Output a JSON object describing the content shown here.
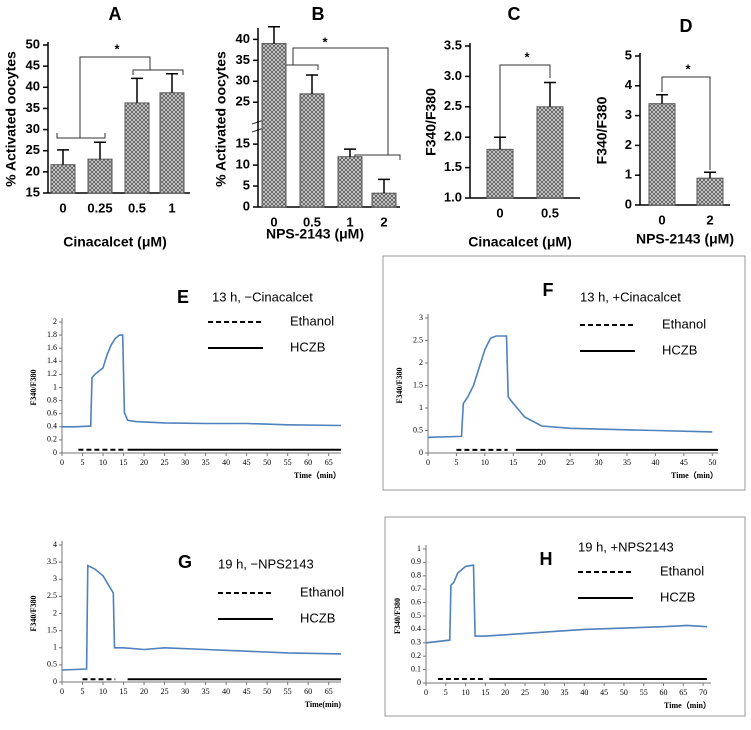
{
  "chart_data": [
    {
      "type": "bar",
      "title": "A",
      "categories": [
        "0",
        "0.25",
        "0.5",
        "1"
      ],
      "values": [
        21.7,
        23,
        36.3,
        38.7
      ],
      "errors": [
        3.5,
        4,
        5.8,
        4.5
      ],
      "color": "#555555",
      "ylim": [
        15,
        50
      ],
      "yticks": [
        15,
        20,
        25,
        30,
        35,
        40,
        45,
        50
      ],
      "xlabel": "Cinacalcet (μM)",
      "ylabel": "% Activated oocytes",
      "annotation": "*"
    },
    {
      "type": "bar",
      "title": "B",
      "categories": [
        "0",
        "0.5",
        "1",
        "2"
      ],
      "values": [
        39,
        27,
        12,
        3.3
      ],
      "errors": [
        4,
        4.5,
        1.8,
        3.3
      ],
      "color": "#555555",
      "ylim": [
        0,
        42
      ],
      "yticks": [
        0,
        5,
        10,
        15,
        25,
        30,
        35,
        40
      ],
      "xlabel": "NPS-2143 (μM)",
      "ylabel": "% Activated oocytes",
      "annotation": "*"
    },
    {
      "type": "bar",
      "title": "C",
      "categories": [
        "0",
        "0.5"
      ],
      "values": [
        1.8,
        2.5
      ],
      "errors": [
        0.2,
        0.4
      ],
      "color": "#555555",
      "ylim": [
        1,
        3.5
      ],
      "yticks": [
        {
          "value": 1,
          "label": "1.0"
        },
        1.5,
        {
          "value": 2,
          "label": "2.0"
        },
        2.5,
        {
          "value": 3,
          "label": "3.0"
        },
        3.5
      ],
      "xlabel": "Cinacalcet (μM)",
      "ylabel": "F340/F380",
      "annotation": "*"
    },
    {
      "type": "bar",
      "title": "D",
      "categories": [
        "0",
        "2"
      ],
      "values": [
        3.4,
        0.9
      ],
      "errors": [
        0.3,
        0.2
      ],
      "color": "#555555",
      "ylim": [
        0,
        5
      ],
      "yticks": [
        0,
        1,
        2,
        3,
        4,
        5
      ],
      "xlabel": "NPS-2143 (μM)",
      "ylabel": "F340/F380",
      "annotation": "*"
    },
    {
      "type": "line",
      "title": "E",
      "annotation": "13 h, −Cinacalcet",
      "color": "#4f81bd",
      "frame": false,
      "x": [
        0,
        3,
        7,
        7.3,
        8,
        9,
        10,
        11,
        12,
        13,
        14,
        14.8,
        15.2,
        16,
        18,
        25,
        35,
        45,
        55,
        68
      ],
      "values": [
        0.4,
        0.4,
        0.41,
        1.15,
        1.2,
        1.25,
        1.3,
        1.5,
        1.65,
        1.75,
        1.8,
        1.8,
        0.62,
        0.5,
        0.48,
        0.46,
        0.45,
        0.45,
        0.43,
        0.42
      ],
      "series": [
        {
          "name": "Ethanol",
          "color": "#000000",
          "dash": true,
          "x": [
            4,
            15
          ],
          "values": [
            0.05,
            0.05
          ]
        },
        {
          "name": "HCZB",
          "color": "#000000",
          "dash": false,
          "x": [
            16,
            68
          ],
          "values": [
            0.05,
            0.05
          ]
        }
      ],
      "xlim": [
        0,
        68
      ],
      "xticks": [
        0,
        5,
        10,
        15,
        20,
        25,
        30,
        35,
        40,
        45,
        50,
        55,
        60,
        65
      ],
      "ylim": [
        0,
        2
      ],
      "yticks": [
        0,
        0.2,
        0.4,
        0.6,
        0.8,
        1,
        1.2,
        1.4,
        1.6,
        1.8,
        2
      ],
      "xlabel": "Time（min）",
      "ylabel": "F340/F380"
    },
    {
      "type": "line",
      "title": "F",
      "annotation": "13 h, +Cinacalcet",
      "color": "#4f81bd",
      "frame": true,
      "x": [
        0,
        5.9,
        6.2,
        7,
        8,
        9,
        10,
        11,
        12,
        13,
        13.8,
        14.1,
        15,
        17,
        20,
        25,
        30,
        40,
        50
      ],
      "values": [
        0.35,
        0.37,
        1.1,
        1.25,
        1.5,
        1.9,
        2.3,
        2.55,
        2.6,
        2.6,
        2.6,
        1.25,
        1.1,
        0.8,
        0.6,
        0.55,
        0.53,
        0.5,
        0.47
      ],
      "series": [
        {
          "name": "Ethanol",
          "color": "#000000",
          "dash": true,
          "x": [
            5,
            14
          ],
          "values": [
            0.07,
            0.07
          ]
        },
        {
          "name": "HCZB",
          "color": "#000000",
          "dash": false,
          "x": [
            15.5,
            51
          ],
          "values": [
            0.07,
            0.07
          ]
        }
      ],
      "xlim": [
        0,
        51
      ],
      "xticks": [
        0,
        5,
        10,
        15,
        20,
        25,
        30,
        35,
        40,
        45,
        50
      ],
      "ylim": [
        0,
        3
      ],
      "yticks": [
        0,
        0.5,
        1,
        1.5,
        2,
        2.5,
        3
      ],
      "xlabel": "Time（min）",
      "ylabel": "F340/F380"
    },
    {
      "type": "line",
      "title": "G",
      "annotation": "19 h, −NPS2143",
      "color": "#4f81bd",
      "frame": false,
      "x": [
        0,
        6,
        6.3,
        8,
        10,
        11,
        12.5,
        12.8,
        15,
        20,
        25,
        35,
        45,
        55,
        68
      ],
      "values": [
        0.35,
        0.38,
        3.4,
        3.3,
        3.1,
        2.9,
        2.6,
        1.0,
        1.0,
        0.95,
        1.0,
        0.95,
        0.9,
        0.85,
        0.82
      ],
      "series": [
        {
          "name": "Ethanol",
          "color": "#000000",
          "dash": true,
          "x": [
            5,
            13
          ],
          "values": [
            0.08,
            0.08
          ]
        },
        {
          "name": "HCZB",
          "color": "#000000",
          "dash": false,
          "x": [
            16,
            68
          ],
          "values": [
            0.08,
            0.08
          ]
        }
      ],
      "xlim": [
        0,
        68
      ],
      "xticks": [
        0,
        5,
        10,
        15,
        20,
        25,
        30,
        35,
        40,
        45,
        50,
        55,
        60,
        65
      ],
      "ylim": [
        0,
        4
      ],
      "yticks": [
        0,
        0.5,
        1,
        1.5,
        2,
        2.5,
        3,
        3.5,
        4
      ],
      "xlabel": "Time(min)",
      "ylabel": "F340/F380"
    },
    {
      "type": "line",
      "title": "H",
      "annotation": "19 h, +NPS2143",
      "color": "#4f81bd",
      "frame": true,
      "x": [
        0,
        6,
        6.3,
        7,
        8,
        10,
        12,
        12.4,
        15,
        20,
        30,
        40,
        50,
        60,
        66,
        71
      ],
      "values": [
        0.3,
        0.32,
        0.73,
        0.75,
        0.82,
        0.87,
        0.88,
        0.35,
        0.35,
        0.36,
        0.38,
        0.4,
        0.41,
        0.42,
        0.43,
        0.42
      ],
      "series": [
        {
          "name": "Ethanol",
          "color": "#000000",
          "dash": true,
          "x": [
            3,
            15
          ],
          "values": [
            0.03,
            0.03
          ]
        },
        {
          "name": "HCZB",
          "color": "#000000",
          "dash": false,
          "x": [
            16,
            71
          ],
          "values": [
            0.03,
            0.03
          ]
        }
      ],
      "xlim": [
        0,
        72
      ],
      "xticks": [
        0,
        5,
        10,
        15,
        20,
        25,
        30,
        35,
        40,
        45,
        50,
        55,
        60,
        65,
        70
      ],
      "ylim": [
        0,
        1
      ],
      "yticks": [
        0,
        0.1,
        0.2,
        0.3,
        0.4,
        0.5,
        0.6,
        0.7,
        0.8,
        0.9,
        1
      ],
      "xlabel": "Time（min）",
      "ylabel": "F340/F380"
    }
  ]
}
